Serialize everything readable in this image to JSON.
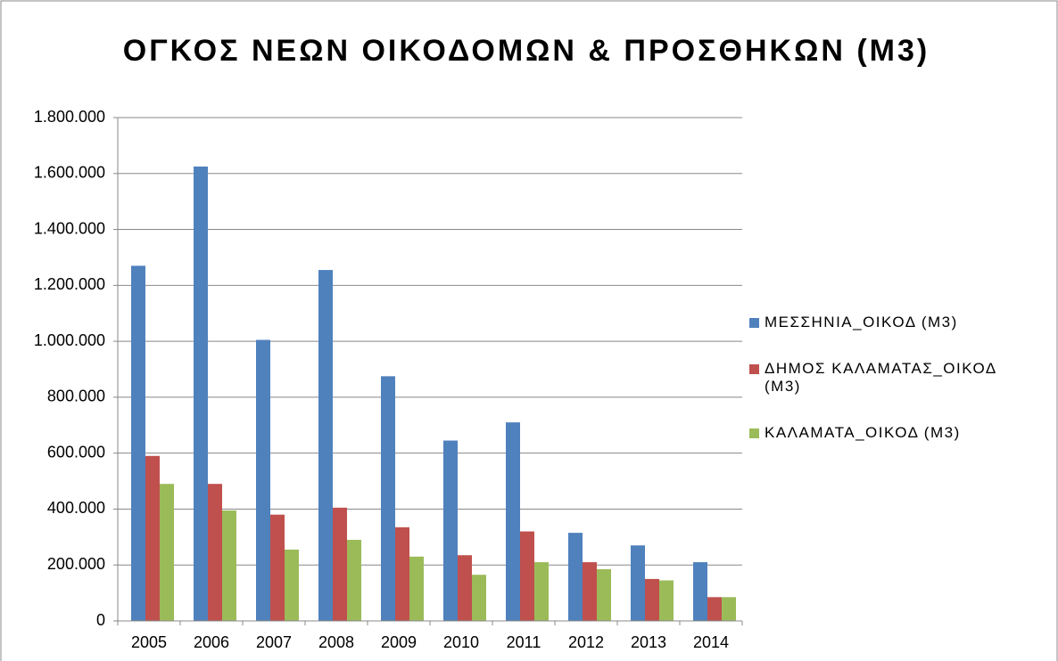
{
  "chart_data": {
    "type": "bar",
    "title": "ΟΓΚΟΣ ΝΕΩΝ ΟΙΚΟΔΟΜΩΝ & ΠΡΟΣΘΗΚΩΝ (Μ3)",
    "categories": [
      "2005",
      "2006",
      "2007",
      "2008",
      "2009",
      "2010",
      "2011",
      "2012",
      "2013",
      "2014"
    ],
    "series": [
      {
        "name": "ΜΕΣΣΗΝΙΑ_ΟΙΚΟΔ (Μ3)",
        "color": "#4f81bd",
        "values": [
          1270000,
          1625000,
          1005000,
          1255000,
          875000,
          645000,
          710000,
          315000,
          270000,
          210000
        ]
      },
      {
        "name": "ΔΗΜΟΣ ΚΑΛΑΜΑΤΑΣ_ΟΙΚΟΔ (Μ3)",
        "color": "#c0504d",
        "values": [
          590000,
          490000,
          380000,
          405000,
          335000,
          235000,
          320000,
          210000,
          150000,
          85000
        ]
      },
      {
        "name": "ΚΑΛΑΜΑΤΑ_ΟΙΚΟΔ (Μ3)",
        "color": "#9bbb59",
        "values": [
          490000,
          395000,
          255000,
          290000,
          230000,
          165000,
          210000,
          185000,
          145000,
          85000
        ]
      }
    ],
    "ylim": [
      0,
      1800000
    ],
    "yticks": [
      0,
      {
        "value": 200000,
        "label": "200.000"
      },
      {
        "value": 400000,
        "label": "400.000"
      },
      {
        "value": 600000,
        "label": "600.000"
      },
      {
        "value": 800000,
        "label": "800.000"
      },
      {
        "value": 1000000,
        "label": "1.000.000"
      },
      {
        "value": 1200000,
        "label": "1.200.000"
      },
      {
        "value": 1400000,
        "label": "1.400.000"
      },
      {
        "value": 1600000,
        "label": "1.600.000"
      },
      {
        "value": 1800000,
        "label": "1.800.000"
      }
    ],
    "grid": true,
    "legend": "right"
  }
}
